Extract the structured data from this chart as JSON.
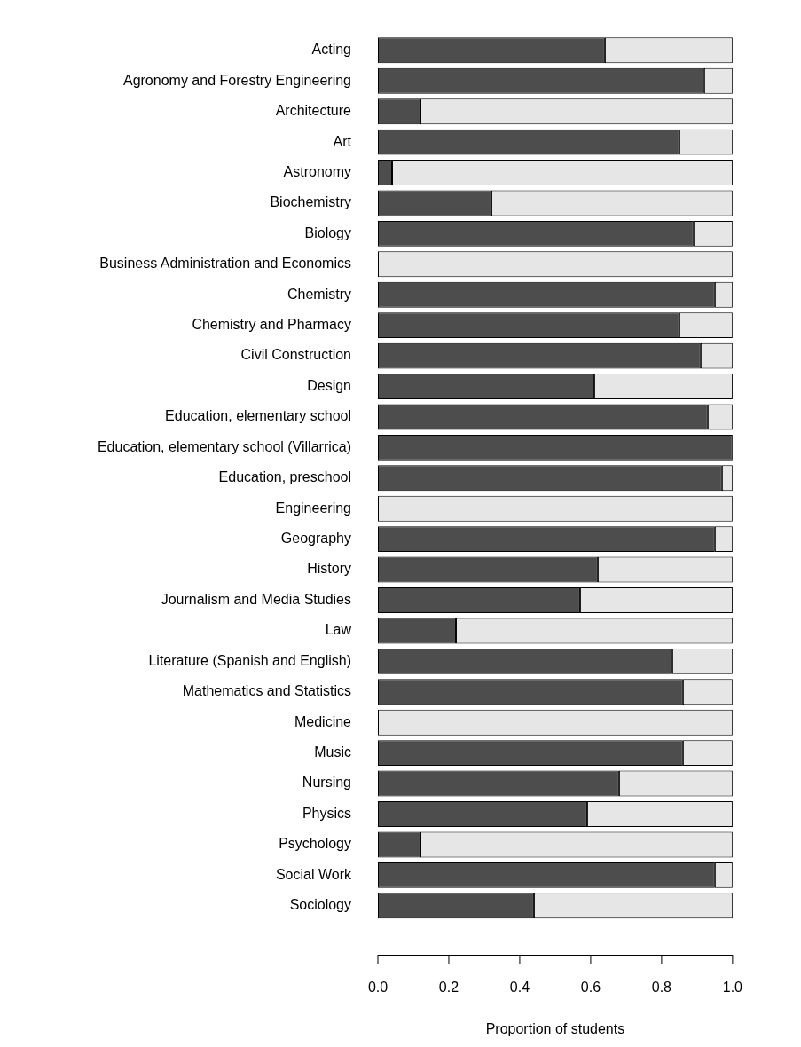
{
  "chart_data": {
    "type": "bar",
    "orientation": "horizontal",
    "stacked": true,
    "xlabel": "Proportion of students",
    "categories": [
      "Acting",
      "Agronomy and Forestry Engineering",
      "Architecture",
      "Art",
      "Astronomy",
      "Biochemistry",
      "Biology",
      "Business Administration and Economics",
      "Chemistry",
      "Chemistry and Pharmacy",
      "Civil Construction",
      "Design",
      "Education, elementary school",
      "Education, elementary school (Villarrica)",
      "Education, preschool",
      "Engineering",
      "Geography",
      "History",
      "Journalism and Media Studies",
      "Law",
      "Literature (Spanish and English)",
      "Mathematics and Statistics",
      "Medicine",
      "Music",
      "Nursing",
      "Physics",
      "Psychology",
      "Social Work",
      "Sociology"
    ],
    "series": [
      {
        "color": "#4d4d4d",
        "values": [
          0.64,
          0.92,
          0.12,
          0.85,
          0.04,
          0.32,
          0.89,
          0,
          0.95,
          0.85,
          0.91,
          0.61,
          0.93,
          1,
          0.97,
          0,
          0.95,
          0.62,
          0.57,
          0.22,
          0.83,
          0.86,
          0,
          0.86,
          0.68,
          0.59,
          0.12,
          0.95,
          0.44
        ]
      },
      {
        "color": "#e6e6e6",
        "values": [
          0.36,
          0.08,
          0.88,
          0.15,
          0.96,
          0.68,
          0.11,
          1,
          0.05,
          0.15,
          0.09,
          0.39,
          0.07,
          0,
          0.03,
          1,
          0.05,
          0.38,
          0.43,
          0.78,
          0.17,
          0.14,
          1,
          0.14,
          0.32,
          0.41,
          0.88,
          0.05,
          0.56
        ]
      }
    ],
    "xlim": [
      0,
      1
    ],
    "xticks": [
      {
        "value": 0,
        "label": "0.0"
      },
      {
        "value": 0.2,
        "label": "0.2"
      },
      {
        "value": 0.4,
        "label": "0.4"
      },
      {
        "value": 0.6,
        "label": "0.6"
      },
      {
        "value": 0.8,
        "label": "0.8"
      },
      {
        "value": 1,
        "label": "1.0"
      }
    ],
    "grid": false,
    "legend": false
  }
}
